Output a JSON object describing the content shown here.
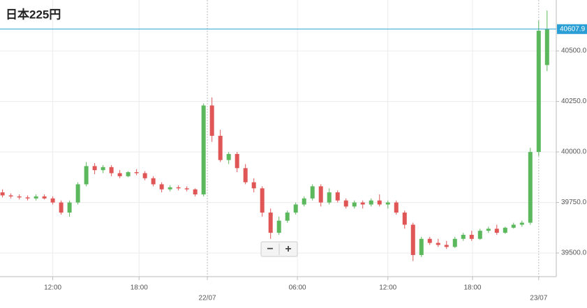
{
  "chart_data": {
    "type": "candlestick",
    "title": "日本225円",
    "open": [
      39800,
      39785,
      39780,
      39775,
      39770,
      39780,
      39770,
      39750,
      39700,
      39750,
      39840,
      39930,
      39910,
      39925,
      39895,
      39880,
      39900,
      39895,
      39870,
      39840,
      39815,
      39825,
      39820,
      39815,
      39790,
      40230,
      40080,
      39960,
      39990,
      39920,
      39850,
      39820,
      39700,
      39600,
      39660,
      39700,
      39740,
      39770,
      39830,
      39750,
      39800,
      39760,
      39730,
      39750,
      39740,
      39760,
      39740,
      39750,
      39700,
      39640,
      39490,
      39570,
      39550,
      39540,
      39530,
      39570,
      39590,
      39570,
      39610,
      39620,
      39600,
      39625,
      39640,
      39650,
      40000,
      40430
    ],
    "high": [
      39815,
      39795,
      39790,
      39785,
      39790,
      39790,
      39780,
      39760,
      39760,
      39850,
      39950,
      39945,
      39935,
      39935,
      39910,
      39905,
      39915,
      39905,
      39880,
      39850,
      39835,
      39835,
      39830,
      39820,
      40240,
      40270,
      40110,
      40000,
      40000,
      39940,
      39870,
      39830,
      39720,
      39680,
      39710,
      39750,
      39780,
      39840,
      39840,
      39820,
      39810,
      39770,
      39760,
      39760,
      39770,
      39790,
      39760,
      39760,
      39710,
      39650,
      39580,
      39580,
      39570,
      39560,
      39580,
      39600,
      39610,
      39620,
      39630,
      39640,
      39630,
      39650,
      39660,
      40020,
      40650,
      40700
    ],
    "low": [
      39775,
      39770,
      39765,
      39760,
      39760,
      39765,
      39740,
      39690,
      39680,
      39740,
      39830,
      39890,
      39895,
      39880,
      39870,
      39875,
      39885,
      39860,
      39830,
      39800,
      39805,
      39810,
      39805,
      39780,
      39780,
      40050,
      39950,
      39940,
      39900,
      39840,
      39800,
      39680,
      39570,
      39590,
      39650,
      39690,
      39730,
      39760,
      39730,
      39740,
      39750,
      39720,
      39720,
      39720,
      39730,
      39730,
      39720,
      39690,
      39620,
      39460,
      39480,
      39540,
      39530,
      39520,
      39525,
      39560,
      39560,
      39565,
      39600,
      39590,
      39595,
      39620,
      39630,
      39640,
      39980,
      40400
    ],
    "close": [
      39785,
      39780,
      39775,
      39770,
      39780,
      39770,
      39750,
      39700,
      39750,
      39840,
      39930,
      39910,
      39925,
      39895,
      39880,
      39900,
      39895,
      39870,
      39840,
      39815,
      39825,
      39820,
      39815,
      39790,
      40230,
      40080,
      39960,
      39990,
      39920,
      39850,
      39820,
      39700,
      39600,
      39660,
      39700,
      39740,
      39770,
      39830,
      39750,
      39800,
      39760,
      39730,
      39750,
      39740,
      39760,
      39740,
      39750,
      39700,
      39640,
      39490,
      39570,
      39550,
      39540,
      39530,
      39570,
      39590,
      39570,
      39610,
      39620,
      39600,
      39625,
      39640,
      39650,
      40000,
      40600,
      40607.9
    ],
    "up_color": "#5cb85c",
    "down_color": "#e05555",
    "last_price": 40607.9,
    "last_price_color": "#2a9fd6",
    "xlim": [
      -0.3,
      66.1
    ],
    "xticks": [
      {
        "value": 6,
        "label": "12:00"
      },
      {
        "value": 16.3,
        "label": "18:00"
      },
      {
        "value": 24.45,
        "label": "22/07"
      },
      {
        "value": 35.2,
        "label": "06:00"
      },
      {
        "value": 46,
        "label": "12:00"
      },
      {
        "value": 56.1,
        "label": "18:00"
      },
      {
        "value": 64,
        "label": "23/07"
      }
    ],
    "ylim": [
      39383,
      40752
    ],
    "yticks": [
      {
        "value": 39500,
        "label": "39500.0"
      },
      {
        "value": 39750,
        "label": "39750.0"
      },
      {
        "value": 40000,
        "label": "40000.0"
      },
      {
        "value": 40250,
        "label": "40250.0"
      },
      {
        "value": 40500,
        "label": "40500.0"
      }
    ],
    "grid": true
  },
  "controls": {
    "zoom_out": "−",
    "zoom_in": "+"
  }
}
